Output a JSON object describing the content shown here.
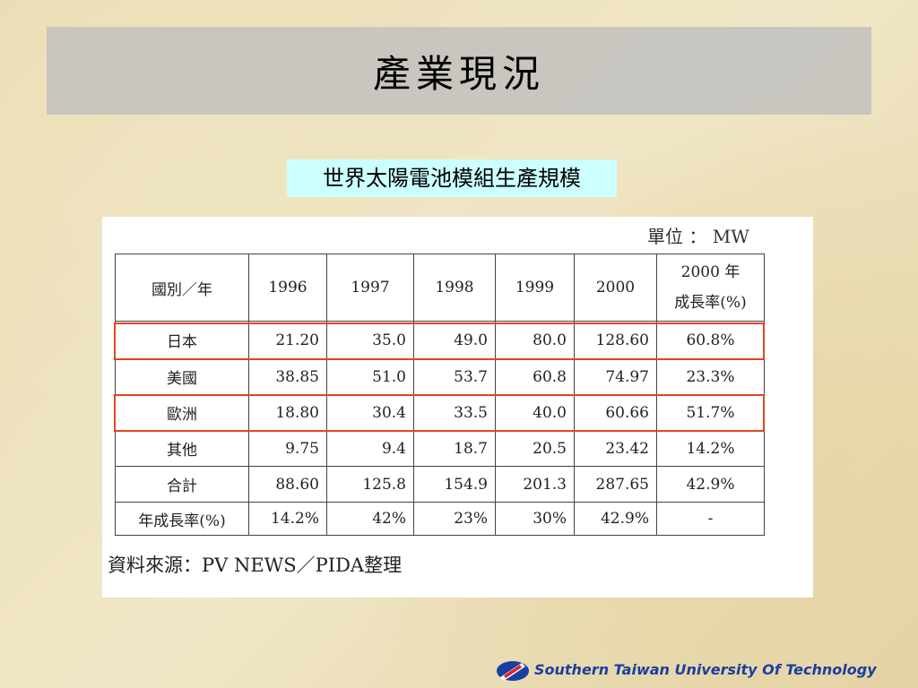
{
  "header": {
    "title": "產業現況"
  },
  "subtitle": "世界太陽電池模組生產規模",
  "unit": "單位 ： MW",
  "table": {
    "columns": [
      "國別／年",
      "1996",
      "1997",
      "1998",
      "1999",
      "2000"
    ],
    "growth_column": [
      "2000 年",
      "成長率(%)"
    ],
    "rows": [
      [
        "日本",
        "21.20",
        "35.0",
        "49.0",
        "80.0",
        "128.60",
        "60.8%"
      ],
      [
        "美國",
        "38.85",
        "51.0",
        "53.7",
        "60.8",
        "74.97",
        "23.3%"
      ],
      [
        "歐洲",
        "18.80",
        "30.4",
        "33.5",
        "40.0",
        "60.66",
        "51.7%"
      ],
      [
        "其他",
        "9.75",
        "9.4",
        "18.7",
        "20.5",
        "23.42",
        "14.2%"
      ],
      [
        "合計",
        "88.60",
        "125.8",
        "154.9",
        "201.3",
        "287.65",
        "42.9%"
      ],
      [
        "年成長率(%)",
        "14.2%",
        "42%",
        "23%",
        "30%",
        "42.9%",
        "-"
      ]
    ]
  },
  "source": "資料來源：PV NEWS／PIDA整理",
  "footer": "Southern Taiwan University Of Technology"
}
